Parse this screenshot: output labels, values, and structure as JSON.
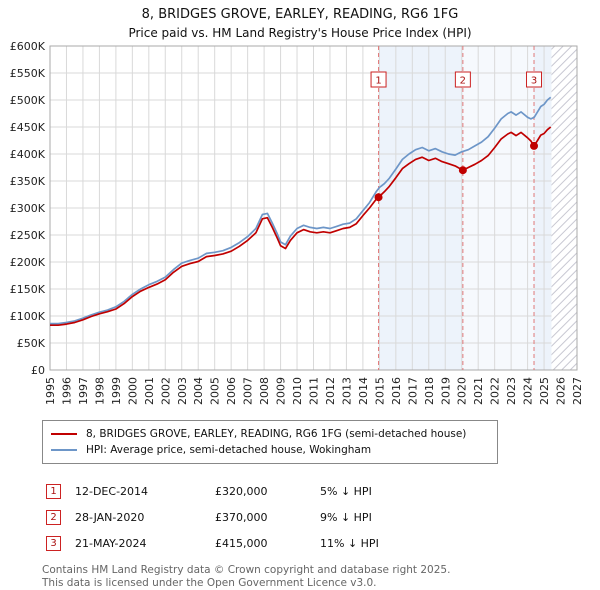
{
  "title": "8, BRIDGES GROVE, EARLEY, READING, RG6 1FG",
  "subtitle": "Price paid vs. HM Land Registry's House Price Index (HPI)",
  "legend": [
    {
      "label": "8, BRIDGES GROVE, EARLEY, READING, RG6 1FG (semi-detached house)",
      "color": "#c00000"
    },
    {
      "label": "HPI: Average price, semi-detached house, Wokingham",
      "color": "#6d96c8"
    }
  ],
  "transactions": [
    {
      "num": "1",
      "date": "12-DEC-2014",
      "price": "£320,000",
      "hpi": "5% ↓ HPI",
      "x": 2014.95,
      "yk": 320
    },
    {
      "num": "2",
      "date": "28-JAN-2020",
      "price": "£370,000",
      "hpi": "9% ↓ HPI",
      "x": 2020.07,
      "yk": 370
    },
    {
      "num": "3",
      "date": "21-MAY-2024",
      "price": "£415,000",
      "hpi": "11% ↓ HPI",
      "x": 2024.39,
      "yk": 415
    }
  ],
  "footer": {
    "line1": "Contains HM Land Registry data © Crown copyright and database right 2025.",
    "line2": "This data is licensed under the Open Government Licence v3.0."
  },
  "chart_data": {
    "type": "line",
    "xlim": [
      1995,
      2027
    ],
    "ylim": [
      0,
      600
    ],
    "unit": "£K",
    "grid": true,
    "legend_position": "bottom",
    "y_ticks": {
      "values": [
        0,
        50,
        100,
        150,
        200,
        250,
        300,
        350,
        400,
        450,
        500,
        550,
        600
      ],
      "labels": [
        "£0",
        "£50K",
        "£100K",
        "£150K",
        "£200K",
        "£250K",
        "£300K",
        "£350K",
        "£400K",
        "£450K",
        "£500K",
        "£550K",
        "£600K"
      ]
    },
    "x_ticks": [
      1995,
      1996,
      1997,
      1998,
      1999,
      2000,
      2001,
      2002,
      2003,
      2004,
      2005,
      2006,
      2007,
      2008,
      2009,
      2010,
      2011,
      2012,
      2013,
      2014,
      2015,
      2016,
      2017,
      2018,
      2019,
      2020,
      2021,
      2022,
      2023,
      2024,
      2025,
      2026,
      2027
    ],
    "x_tick_labels": [
      "1995",
      "1996",
      "1997",
      "1998",
      "1999",
      "2000",
      "2001",
      "2002",
      "2003",
      "2004",
      "2005",
      "2006",
      "2007",
      "2008",
      "2009",
      "2010",
      "2011",
      "2012",
      "2013",
      "2014",
      "2015",
      "2016",
      "2017",
      "2018",
      "2019",
      "2020",
      "2021",
      "2022",
      "2023",
      "2024",
      "2025",
      "2026",
      "2027"
    ],
    "bands": [
      {
        "from": 2014.95,
        "to": 2020.07,
        "color": "#edf3fb"
      },
      {
        "from": 2020.07,
        "to": 2024.39,
        "color": "#f6f9fd"
      },
      {
        "from": 2024.39,
        "to": 2025.45,
        "color": "#edf3fb"
      }
    ],
    "future_hatch": {
      "from": 2025.45,
      "to": 2027
    },
    "sale_line_color": "#e07878",
    "marker_color": "#c00000",
    "series": [
      {
        "name": "HPI: Average price, semi-detached house, Wokingham",
        "color": "#6d96c8",
        "points": [
          [
            1995.0,
            86
          ],
          [
            1995.5,
            86
          ],
          [
            1996.0,
            88
          ],
          [
            1996.5,
            91
          ],
          [
            1997.0,
            96
          ],
          [
            1997.5,
            102
          ],
          [
            1998.0,
            107
          ],
          [
            1998.5,
            111
          ],
          [
            1999.0,
            117
          ],
          [
            1999.5,
            127
          ],
          [
            2000.0,
            140
          ],
          [
            2000.5,
            150
          ],
          [
            2001.0,
            158
          ],
          [
            2001.5,
            164
          ],
          [
            2002.0,
            172
          ],
          [
            2002.5,
            186
          ],
          [
            2003.0,
            198
          ],
          [
            2003.5,
            203
          ],
          [
            2004.0,
            207
          ],
          [
            2004.5,
            216
          ],
          [
            2005.0,
            218
          ],
          [
            2005.5,
            221
          ],
          [
            2006.0,
            227
          ],
          [
            2006.5,
            236
          ],
          [
            2007.0,
            247
          ],
          [
            2007.5,
            262
          ],
          [
            2007.9,
            288
          ],
          [
            2008.2,
            290
          ],
          [
            2008.5,
            272
          ],
          [
            2008.8,
            252
          ],
          [
            2009.0,
            237
          ],
          [
            2009.3,
            232
          ],
          [
            2009.6,
            248
          ],
          [
            2010.0,
            262
          ],
          [
            2010.4,
            268
          ],
          [
            2010.8,
            264
          ],
          [
            2011.2,
            262
          ],
          [
            2011.6,
            264
          ],
          [
            2012.0,
            262
          ],
          [
            2012.4,
            266
          ],
          [
            2012.8,
            270
          ],
          [
            2013.2,
            272
          ],
          [
            2013.6,
            280
          ],
          [
            2014.0,
            295
          ],
          [
            2014.4,
            310
          ],
          [
            2014.8,
            330
          ],
          [
            2015.0,
            338
          ],
          [
            2015.3,
            345
          ],
          [
            2015.6,
            355
          ],
          [
            2016.0,
            372
          ],
          [
            2016.4,
            390
          ],
          [
            2016.8,
            400
          ],
          [
            2017.2,
            408
          ],
          [
            2017.6,
            412
          ],
          [
            2018.0,
            406
          ],
          [
            2018.4,
            410
          ],
          [
            2018.8,
            404
          ],
          [
            2019.2,
            400
          ],
          [
            2019.6,
            398
          ],
          [
            2020.0,
            404
          ],
          [
            2020.4,
            408
          ],
          [
            2020.8,
            415
          ],
          [
            2021.2,
            422
          ],
          [
            2021.6,
            432
          ],
          [
            2022.0,
            448
          ],
          [
            2022.4,
            465
          ],
          [
            2022.8,
            475
          ],
          [
            2023.0,
            478
          ],
          [
            2023.3,
            472
          ],
          [
            2023.6,
            478
          ],
          [
            2024.0,
            468
          ],
          [
            2024.2,
            465
          ],
          [
            2024.4,
            468
          ],
          [
            2024.6,
            478
          ],
          [
            2024.8,
            488
          ],
          [
            2025.0,
            492
          ],
          [
            2025.2,
            500
          ],
          [
            2025.4,
            505
          ]
        ]
      },
      {
        "name": "8, BRIDGES GROVE, EARLEY, READING, RG6 1FG (semi-detached house)",
        "color": "#c00000",
        "points": [
          [
            1995.0,
            83
          ],
          [
            1995.5,
            83
          ],
          [
            1996.0,
            85
          ],
          [
            1996.5,
            88
          ],
          [
            1997.0,
            93
          ],
          [
            1997.5,
            99
          ],
          [
            1998.0,
            104
          ],
          [
            1998.5,
            108
          ],
          [
            1999.0,
            113
          ],
          [
            1999.5,
            123
          ],
          [
            2000.0,
            136
          ],
          [
            2000.5,
            146
          ],
          [
            2001.0,
            153
          ],
          [
            2001.5,
            159
          ],
          [
            2002.0,
            167
          ],
          [
            2002.5,
            181
          ],
          [
            2003.0,
            192
          ],
          [
            2003.5,
            197
          ],
          [
            2004.0,
            201
          ],
          [
            2004.5,
            210
          ],
          [
            2005.0,
            212
          ],
          [
            2005.5,
            215
          ],
          [
            2006.0,
            220
          ],
          [
            2006.5,
            229
          ],
          [
            2007.0,
            240
          ],
          [
            2007.5,
            254
          ],
          [
            2007.9,
            280
          ],
          [
            2008.2,
            282
          ],
          [
            2008.5,
            264
          ],
          [
            2008.8,
            244
          ],
          [
            2009.0,
            230
          ],
          [
            2009.3,
            225
          ],
          [
            2009.6,
            240
          ],
          [
            2010.0,
            254
          ],
          [
            2010.4,
            260
          ],
          [
            2010.8,
            256
          ],
          [
            2011.2,
            254
          ],
          [
            2011.6,
            256
          ],
          [
            2012.0,
            254
          ],
          [
            2012.4,
            258
          ],
          [
            2012.8,
            262
          ],
          [
            2013.2,
            264
          ],
          [
            2013.6,
            271
          ],
          [
            2014.0,
            286
          ],
          [
            2014.4,
            300
          ],
          [
            2014.8,
            316
          ],
          [
            2014.95,
            320
          ],
          [
            2015.3,
            330
          ],
          [
            2015.6,
            340
          ],
          [
            2016.0,
            356
          ],
          [
            2016.4,
            373
          ],
          [
            2016.8,
            382
          ],
          [
            2017.2,
            390
          ],
          [
            2017.6,
            394
          ],
          [
            2018.0,
            388
          ],
          [
            2018.4,
            392
          ],
          [
            2018.8,
            386
          ],
          [
            2019.2,
            382
          ],
          [
            2019.6,
            378
          ],
          [
            2020.07,
            370
          ],
          [
            2020.4,
            375
          ],
          [
            2020.8,
            381
          ],
          [
            2021.2,
            388
          ],
          [
            2021.6,
            397
          ],
          [
            2022.0,
            412
          ],
          [
            2022.4,
            428
          ],
          [
            2022.8,
            437
          ],
          [
            2023.0,
            440
          ],
          [
            2023.3,
            434
          ],
          [
            2023.6,
            440
          ],
          [
            2024.0,
            430
          ],
          [
            2024.2,
            424
          ],
          [
            2024.39,
            415
          ],
          [
            2024.6,
            425
          ],
          [
            2024.8,
            435
          ],
          [
            2025.0,
            438
          ],
          [
            2025.2,
            445
          ],
          [
            2025.4,
            450
          ]
        ]
      }
    ]
  }
}
